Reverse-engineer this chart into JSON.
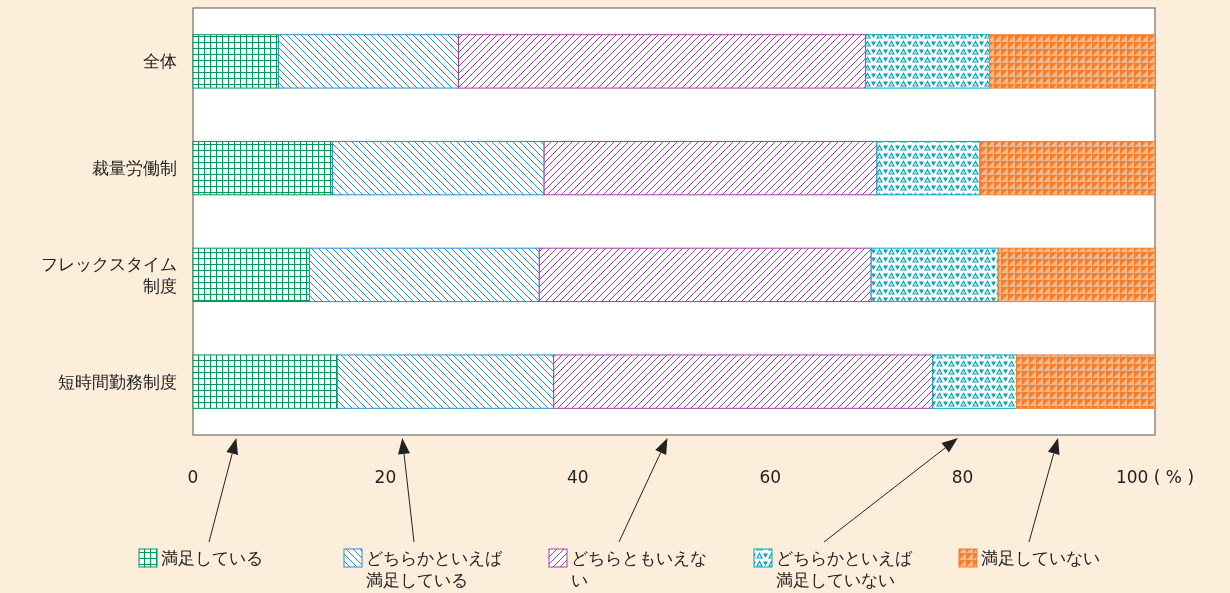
{
  "chart_data": {
    "type": "bar",
    "orientation": "horizontal",
    "stacked": true,
    "categories": [
      "全体",
      "裁量労働制",
      "フレックスタイム制度",
      "短時間勤務制度"
    ],
    "series": [
      {
        "name": "満足している",
        "color": "#009a5a",
        "values": [
          8.9,
          14.5,
          12.1,
          15.0
        ]
      },
      {
        "name": "どちらかといえば満足している",
        "color": "#2a8ccc",
        "values": [
          18.7,
          22.0,
          23.9,
          22.5
        ]
      },
      {
        "name": "どちらともいえない",
        "color": "#a040a0",
        "values": [
          42.3,
          34.6,
          34.5,
          39.4
        ]
      },
      {
        "name": "どちらかといえば満足していない",
        "color": "#00a8b8",
        "values": [
          12.9,
          10.7,
          13.2,
          8.7
        ]
      },
      {
        "name": "満足していない",
        "color": "#f08030",
        "values": [
          17.2,
          18.2,
          16.3,
          14.4
        ]
      }
    ],
    "xlim": [
      0,
      100
    ],
    "xticks": [
      0,
      20,
      40,
      60,
      80,
      {
        "value": 100,
        "label": "100 ( % )"
      }
    ],
    "legend": "bottom",
    "grid": false
  }
}
